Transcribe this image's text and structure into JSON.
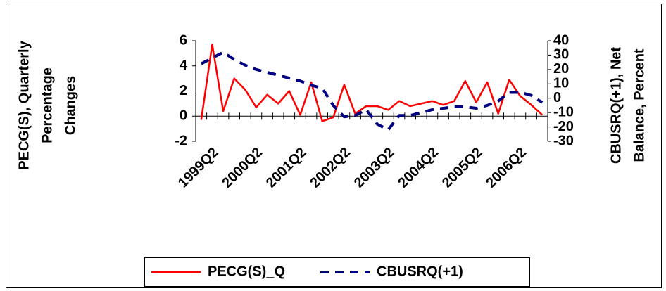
{
  "chart_data": {
    "type": "line",
    "ylabel": [
      "PECG(S), Quarterly",
      "Percentage",
      "Changes"
    ],
    "y2label": [
      "CBUSRQ(+1), Net",
      "Balance, Percent"
    ],
    "categories": [
      null,
      "1999Q2",
      null,
      null,
      null,
      "2000Q2",
      null,
      null,
      null,
      "2001Q2",
      null,
      null,
      null,
      "2002Q2",
      null,
      null,
      null,
      "2003Q2",
      null,
      null,
      null,
      "2004Q2",
      null,
      null,
      null,
      "2005Q2",
      null,
      null,
      null,
      "2006Q2",
      null,
      null
    ],
    "series": [
      {
        "name": "PECG(S)_Q",
        "color": "#ff0000",
        "line_style": "solid",
        "values": [
          -0.3,
          5.7,
          0.4,
          3.0,
          2.1,
          0.7,
          1.7,
          1.0,
          2.0,
          0.1,
          2.7,
          -0.4,
          -0.1,
          2.5,
          0.2,
          0.8,
          0.8,
          0.5,
          1.2,
          0.8,
          1.0,
          1.2,
          0.9,
          1.2,
          2.8,
          1.1,
          2.7,
          0.2,
          2.9,
          1.6,
          0.9,
          0.1
        ]
      },
      {
        "name": "CBUSRQ(+1)",
        "color": "#000080",
        "line_style": "dashed",
        "axis": "y2",
        "values": [
          24,
          28,
          32,
          27,
          23,
          20,
          18,
          16,
          14,
          12,
          9,
          7,
          -5,
          -13,
          -12,
          -8,
          -18,
          -22,
          -12,
          -12,
          -10,
          -8,
          -7,
          -6,
          -6,
          -7,
          -5,
          -2,
          4,
          4,
          2,
          -3
        ]
      }
    ],
    "ylim": [
      -2,
      6
    ],
    "yticks": [
      -2,
      0,
      2,
      4,
      6
    ],
    "y2lim": [
      -30,
      40
    ],
    "y2ticks": [
      -30,
      -20,
      -10,
      0,
      10,
      20,
      30,
      40
    ],
    "legend": "bottom"
  }
}
